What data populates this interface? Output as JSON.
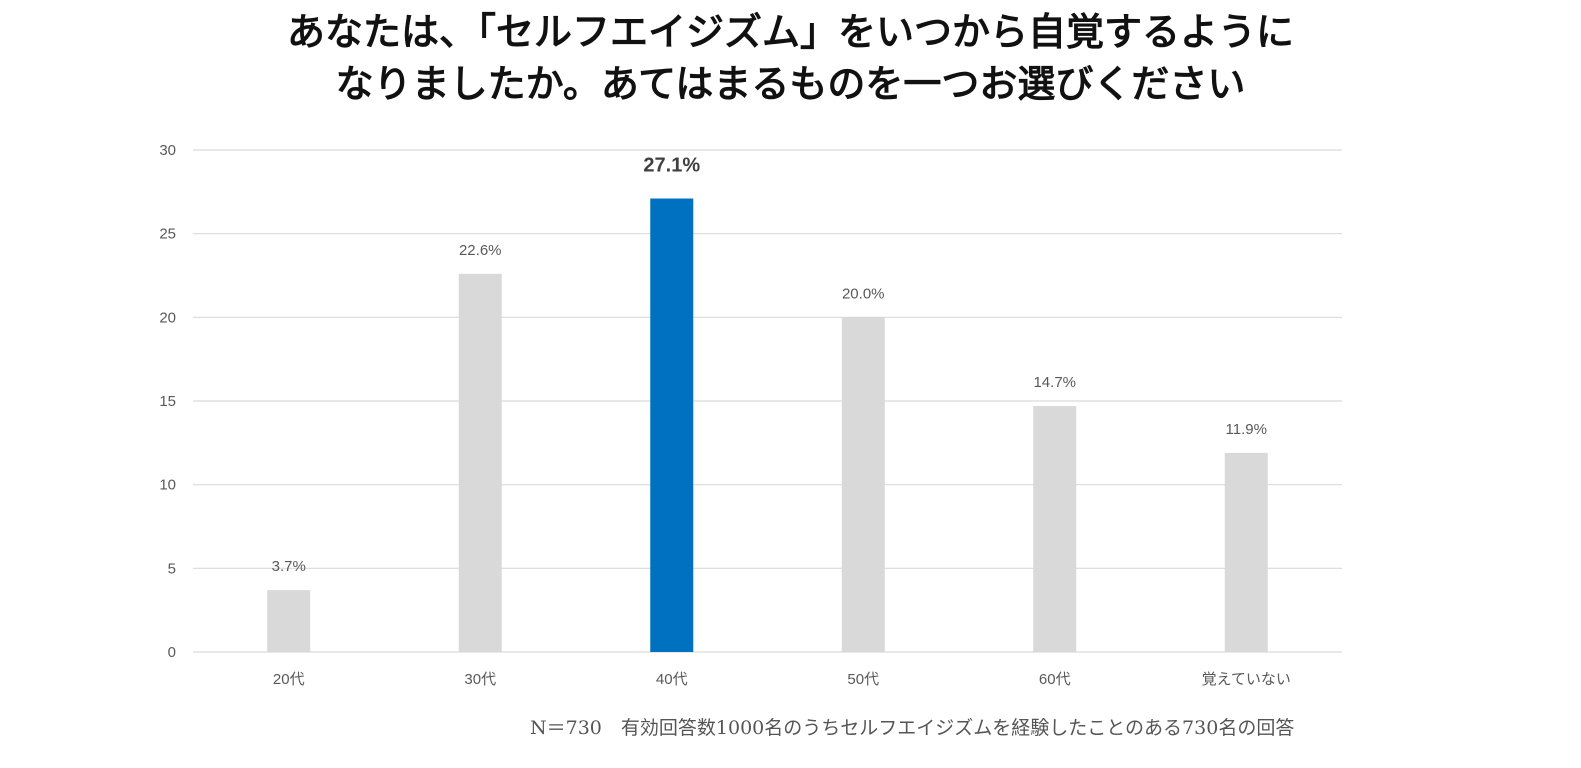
{
  "title": {
    "line1": "あなたは、「セルフエイジズム」をいつから自覚するように",
    "line2": "なりましたか。あてはまるものを一つお選びください"
  },
  "chart_data": {
    "type": "bar",
    "title": "あなたは、「セルフエイジズム」をいつから自覚するようになりましたか。あてはまるものを一つお選びください",
    "categories": [
      "20代",
      "30代",
      "40代",
      "50代",
      "60代",
      "覚えていない"
    ],
    "values": [
      3.7,
      22.6,
      27.1,
      20.0,
      14.7,
      11.9
    ],
    "data_labels": [
      "3.7%",
      "22.6%",
      "27.1%",
      "20.0%",
      "14.7%",
      "11.9%"
    ],
    "highlight_index": 2,
    "ylim": [
      0,
      30
    ],
    "yticks": [
      0,
      5,
      10,
      15,
      20,
      25,
      30
    ],
    "xlabel": "",
    "ylabel": "",
    "grid": true,
    "colors": {
      "bar": "#d9d9d9",
      "highlight": "#0070c0",
      "grid": "#d9d9d9",
      "label": "#595959",
      "highlight_label": "#404040"
    }
  },
  "footnote": "N＝730　有効回答数1000名のうちセルフエイジズムを経験したことのある730名の回答"
}
